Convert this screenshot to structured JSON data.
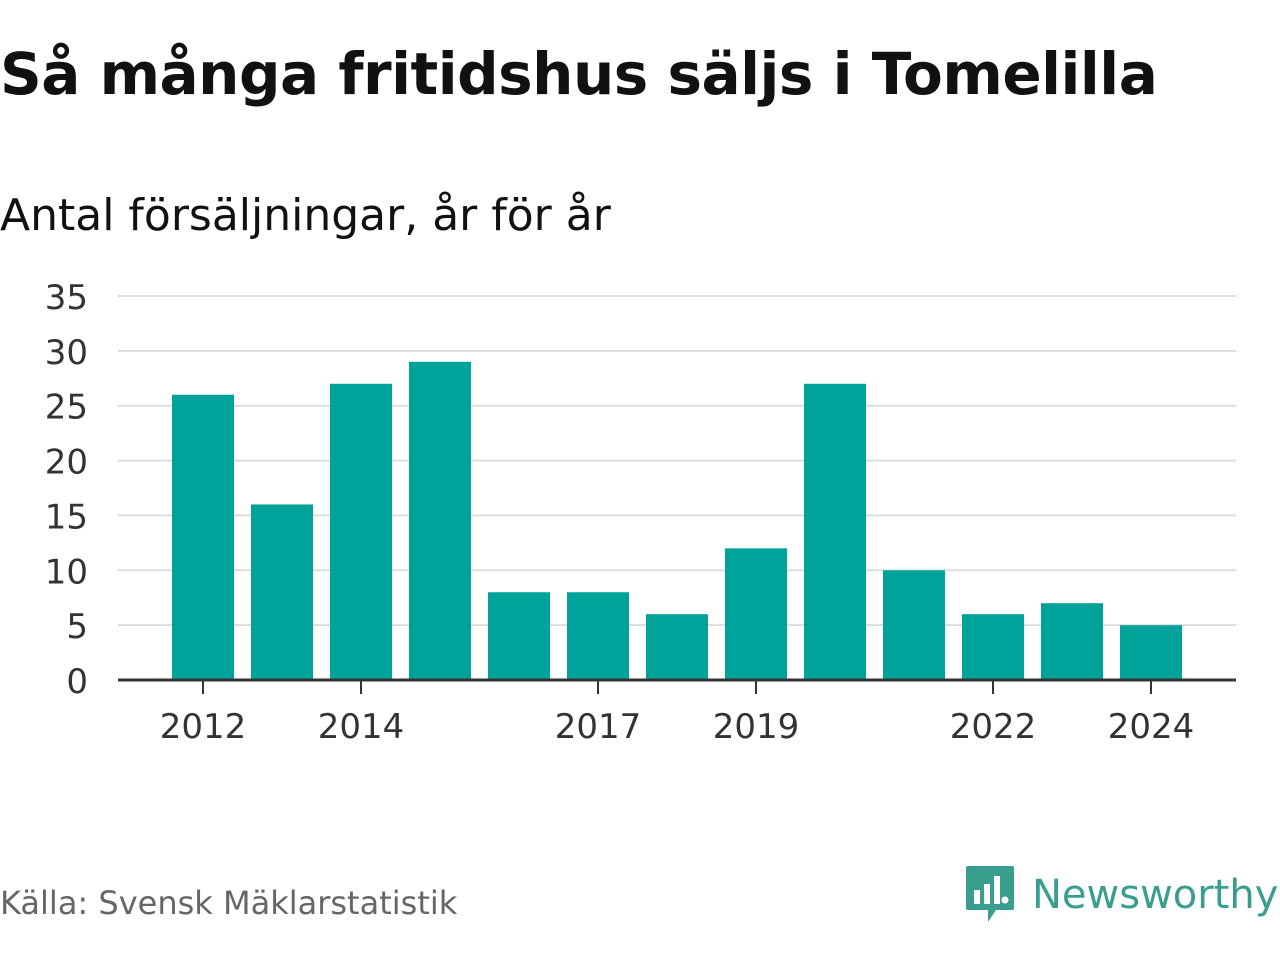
{
  "header": {
    "title": "Så många fritidshus säljs i Tomelilla",
    "subtitle": "Antal försäljningar, år för år"
  },
  "footer": {
    "source": "Källa: Svensk Mäklarstatistik",
    "brand": "Newsworthy",
    "brand_icon": "bar-chart-speech-bubble-icon"
  },
  "colors": {
    "bar": "#00a39a",
    "grid": "#dddddd",
    "axis": "#333333",
    "brand": "#3a9e8f"
  },
  "chart_data": {
    "type": "bar",
    "title": "Så många fritidshus säljs i Tomelilla",
    "subtitle": "Antal försäljningar, år för år",
    "categories": [
      "2012",
      "2013",
      "2014",
      "2015",
      "2016",
      "2017",
      "2018",
      "2019",
      "2020",
      "2021",
      "2022",
      "2023",
      "2024"
    ],
    "values": [
      26,
      16,
      27,
      29,
      8,
      8,
      6,
      12,
      27,
      10,
      6,
      7,
      5
    ],
    "x_tick_labels": [
      "2012",
      "2014",
      "2017",
      "2019",
      "2022",
      "2024"
    ],
    "y_ticks": [
      0,
      5,
      10,
      15,
      20,
      25,
      30,
      35
    ],
    "ylim": [
      0,
      35
    ],
    "grid": true,
    "legend": "none"
  }
}
